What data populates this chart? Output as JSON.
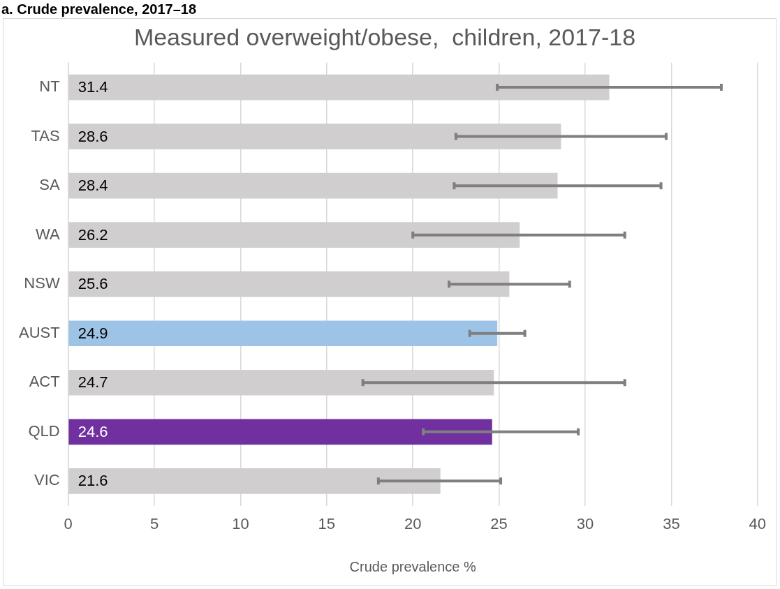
{
  "chart_data": {
    "type": "bar",
    "orientation": "horizontal",
    "title": "Measured overweight/obese,  children, 2017-18",
    "subtitle": "a. Crude prevalence, 2017–18",
    "xlabel": "Crude prevalence %",
    "categories": [
      "NT",
      "TAS",
      "SA",
      "WA",
      "NSW",
      "AUST",
      "ACT",
      "QLD",
      "VIC"
    ],
    "values": [
      31.4,
      28.6,
      28.4,
      26.2,
      25.6,
      24.9,
      24.7,
      24.6,
      21.6
    ],
    "colors": [
      "#d0cece",
      "#d0cece",
      "#d0cece",
      "#d0cece",
      "#d0cece",
      "#9dc3e6",
      "#d0cece",
      "#7030a0",
      "#d0cece"
    ],
    "errors": [
      [
        24.9,
        37.9
      ],
      [
        22.5,
        34.7
      ],
      [
        22.4,
        34.4
      ],
      [
        20.0,
        32.3
      ],
      [
        22.1,
        29.1
      ],
      [
        23.3,
        26.5
      ],
      [
        17.1,
        32.3
      ],
      [
        20.6,
        29.6
      ],
      [
        18.0,
        25.1
      ]
    ],
    "xlim": [
      0,
      40
    ],
    "xticks": [
      0,
      5,
      10,
      15,
      20,
      25,
      30,
      35,
      40
    ],
    "grid": "x",
    "legend": false,
    "data_labels": true
  }
}
